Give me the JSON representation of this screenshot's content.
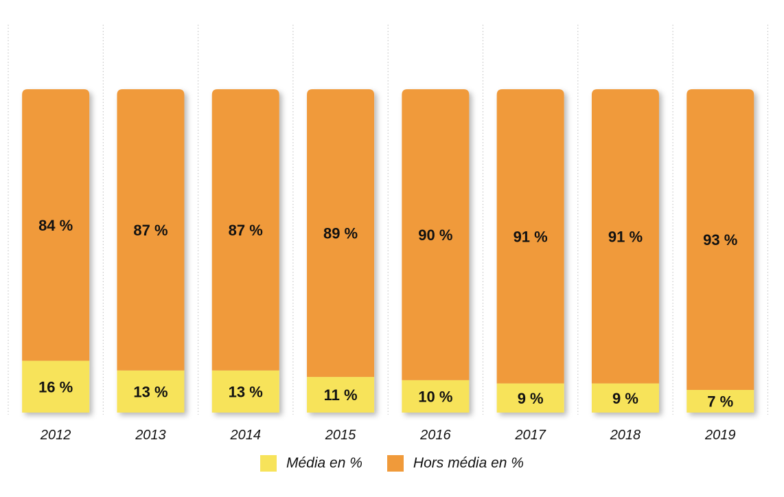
{
  "chart_data": {
    "type": "bar",
    "stacked": true,
    "categories": [
      "2012",
      "2013",
      "2014",
      "2015",
      "2016",
      "2017",
      "2018",
      "2019"
    ],
    "series": [
      {
        "name": "Média en %",
        "values": [
          16,
          13,
          13,
          11,
          10,
          9,
          9,
          7
        ],
        "labels": [
          "16 %",
          "13 %",
          "13 %",
          "11 %",
          "10 %",
          "9 %",
          "9 %",
          "7 %"
        ],
        "color": "#F7E35A"
      },
      {
        "name": "Hors média en %",
        "values": [
          84,
          87,
          87,
          89,
          90,
          91,
          91,
          93
        ],
        "labels": [
          "84 %",
          "87 %",
          "87 %",
          "89 %",
          "90 %",
          "91 %",
          "91 %",
          "93 %"
        ],
        "color": "#F09A3A"
      }
    ],
    "ylim": [
      0,
      100
    ],
    "grid": "vertical dotted separators",
    "legend_position": "bottom-center"
  }
}
